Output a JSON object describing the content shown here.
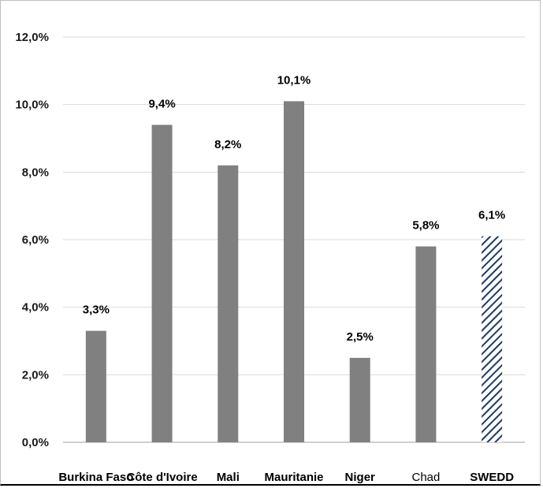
{
  "chart_data": {
    "type": "bar",
    "title": "",
    "xlabel": "",
    "ylabel": "",
    "ylim": [
      0,
      12
    ],
    "yticks": [
      "0,0%",
      "2,0%",
      "4,0%",
      "6,0%",
      "8,0%",
      "10,0%",
      "12,0%"
    ],
    "grid": true,
    "categories": [
      "Burkina Faso",
      "Côte d'Ivoire",
      "Mali",
      "Mauritanie",
      "Niger",
      "Chad",
      "SWEDD"
    ],
    "values": [
      3.3,
      9.4,
      8.2,
      10.1,
      2.5,
      5.8,
      6.1
    ],
    "data_labels": [
      "3,3%",
      "9,4%",
      "8,2%",
      "10,1%",
      "2,5%",
      "5,8%",
      "6,1%"
    ],
    "colors": {
      "bar": "#808080",
      "highlight_pattern_color": "#1f3864",
      "grid": "#d9d9d9",
      "axis": "#bfbfbf"
    },
    "highlight": "SWEDD",
    "light_label": "Chad"
  }
}
